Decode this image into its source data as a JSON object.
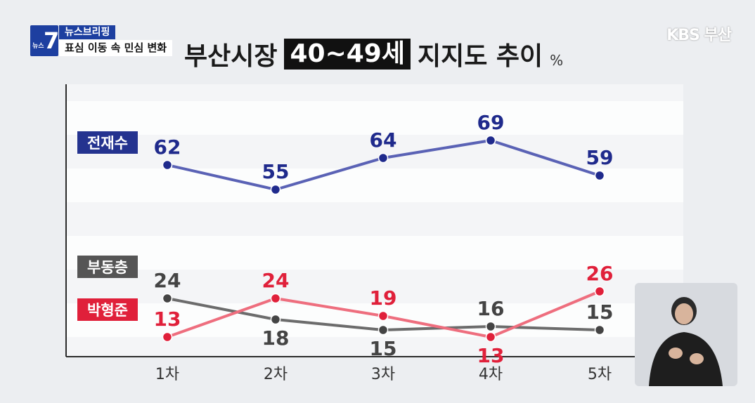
{
  "header": {
    "badge_small": "뉴스",
    "badge_number": "7",
    "program": "뉴스브리핑",
    "subtitle": "표심 이동 속 민심 변화",
    "broadcaster": "KBS 부산"
  },
  "colors": {
    "accent": "#1d3fa0",
    "series_blue": "#5a62b5",
    "series_red": "#ee6e7e",
    "series_gray": "#6c6c6c"
  },
  "chart_data": {
    "type": "line",
    "title_parts": [
      "부산시장",
      "40~49세",
      "지지도 추이"
    ],
    "unit": "%",
    "categories": [
      "1차",
      "2차",
      "3차",
      "4차",
      "5차"
    ],
    "ylim": [
      0,
      85
    ],
    "legend_placement": "left",
    "series": [
      {
        "name": "전재수",
        "values": [
          62,
          55,
          64,
          69,
          59
        ],
        "line_color": "#5a62b5",
        "point_color": "#1f2a8c",
        "label_color": "#1f2a8c",
        "label_bg": "#24338f",
        "label_pos": [
          "above",
          "above",
          "above",
          "above",
          "above"
        ]
      },
      {
        "name": "부동층",
        "values": [
          24,
          18,
          15,
          16,
          15
        ],
        "line_color": "#6c6c6c",
        "point_color": "#444444",
        "label_color": "#444444",
        "label_bg": "#555555",
        "label_pos": [
          "above",
          "below",
          "below",
          "above",
          "above"
        ]
      },
      {
        "name": "박형준",
        "values": [
          13,
          24,
          19,
          13,
          26
        ],
        "line_color": "#ee6e7e",
        "point_color": "#e0203a",
        "label_color": "#e0203a",
        "label_bg": "#e0203a",
        "label_pos": [
          "above",
          "above",
          "above",
          "below",
          "above"
        ]
      }
    ]
  }
}
